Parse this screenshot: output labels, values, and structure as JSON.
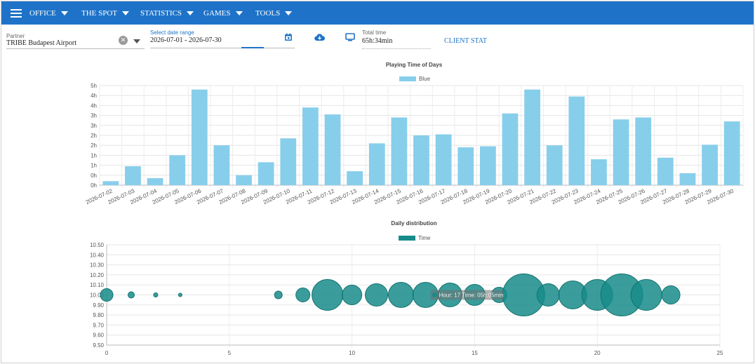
{
  "nav": {
    "items": [
      {
        "label": "OFFICE"
      },
      {
        "label": "THE SPOT"
      },
      {
        "label": "STATISTICS"
      },
      {
        "label": "GAMES"
      },
      {
        "label": "TOOLS"
      }
    ]
  },
  "filters": {
    "partner_label": "Partner",
    "partner_value": "TRIBE Budapest Airport",
    "date_label": "Select date range",
    "date_value": "2026-07-01 - 2026-07-30",
    "total_label": "Total time",
    "total_value": "65h:34min",
    "client_stat_label": "CLIENT STAT"
  },
  "colors": {
    "nav": "#1e73c8",
    "bar": "#87ceeb",
    "bubble": "#178c8a"
  },
  "chart_data": [
    {
      "type": "bar",
      "title": "Playing Time of Days",
      "series": [
        {
          "name": "Blue",
          "values": [
            0.2,
            0.95,
            0.35,
            1.5,
            4.8,
            2.0,
            0.5,
            1.15,
            2.35,
            3.9,
            3.55,
            0.7,
            2.1,
            3.4,
            2.5,
            2.55,
            1.9,
            1.95,
            3.6,
            4.8,
            2.0,
            4.45,
            1.3,
            3.3,
            3.4,
            1.38,
            0.6,
            2.03,
            3.2
          ]
        }
      ],
      "categories": [
        "2026-07-02",
        "2026-07-03",
        "2026-07-04",
        "2026-07-05",
        "2026-07-06",
        "2026-07-07",
        "2026-07-08",
        "2026-07-09",
        "2026-07-10",
        "2026-07-11",
        "2026-07-12",
        "2026-07-13",
        "2026-07-14",
        "2026-07-15",
        "2026-07-16",
        "2026-07-17",
        "2026-07-18",
        "2026-07-19",
        "2026-07-20",
        "2026-07-21",
        "2026-07-22",
        "2026-07-23",
        "2026-07-24",
        "2026-07-25",
        "2026-07-26",
        "2026-07-27",
        "2026-07-28",
        "2026-07-29",
        "2026-07-30"
      ],
      "ylim": [
        0,
        5
      ],
      "y_ticks": [
        "0h",
        "0h",
        "1h",
        "1h",
        "2h",
        "2h",
        "3h",
        "3h",
        "4h",
        "4h",
        "5h"
      ],
      "grid": true,
      "legend": "top-center"
    },
    {
      "type": "scatter",
      "title": "Daily distribution",
      "series": [
        {
          "name": "Time",
          "points": [
            {
              "x": 0,
              "y": 10.0,
              "r": 9
            },
            {
              "x": 1,
              "y": 10.0,
              "r": 4.5
            },
            {
              "x": 2,
              "y": 10.0,
              "r": 3
            },
            {
              "x": 3,
              "y": 10.0,
              "r": 2.5
            },
            {
              "x": 7,
              "y": 10.0,
              "r": 5.5
            },
            {
              "x": 8,
              "y": 10.0,
              "r": 10
            },
            {
              "x": 9,
              "y": 10.0,
              "r": 22
            },
            {
              "x": 10,
              "y": 10.0,
              "r": 14
            },
            {
              "x": 11,
              "y": 10.0,
              "r": 16
            },
            {
              "x": 12,
              "y": 10.0,
              "r": 18
            },
            {
              "x": 13,
              "y": 10.0,
              "r": 18
            },
            {
              "x": 14,
              "y": 10.0,
              "r": 17
            },
            {
              "x": 15,
              "y": 10.0,
              "r": 15
            },
            {
              "x": 16,
              "y": 10.0,
              "r": 11
            },
            {
              "x": 17,
              "y": 10.0,
              "r": 30
            },
            {
              "x": 18,
              "y": 10.0,
              "r": 16
            },
            {
              "x": 19,
              "y": 10.0,
              "r": 20
            },
            {
              "x": 20,
              "y": 10.0,
              "r": 22
            },
            {
              "x": 21,
              "y": 10.0,
              "r": 30
            },
            {
              "x": 22,
              "y": 10.0,
              "r": 22
            },
            {
              "x": 23,
              "y": 10.0,
              "r": 13
            }
          ]
        }
      ],
      "xlim": [
        0,
        25
      ],
      "x_ticks": [
        "0",
        "5",
        "10",
        "15",
        "20",
        "25"
      ],
      "ylim": [
        9.5,
        10.5
      ],
      "y_ticks": [
        "9.50",
        "9.60",
        "9.70",
        "9.80",
        "9.90",
        "10.00",
        "10.10",
        "10.20",
        "10.30",
        "10.40",
        "10.50"
      ],
      "tooltip": "Hour: 17 Time: 05h:05min",
      "grid": true,
      "legend": "top-center"
    }
  ]
}
